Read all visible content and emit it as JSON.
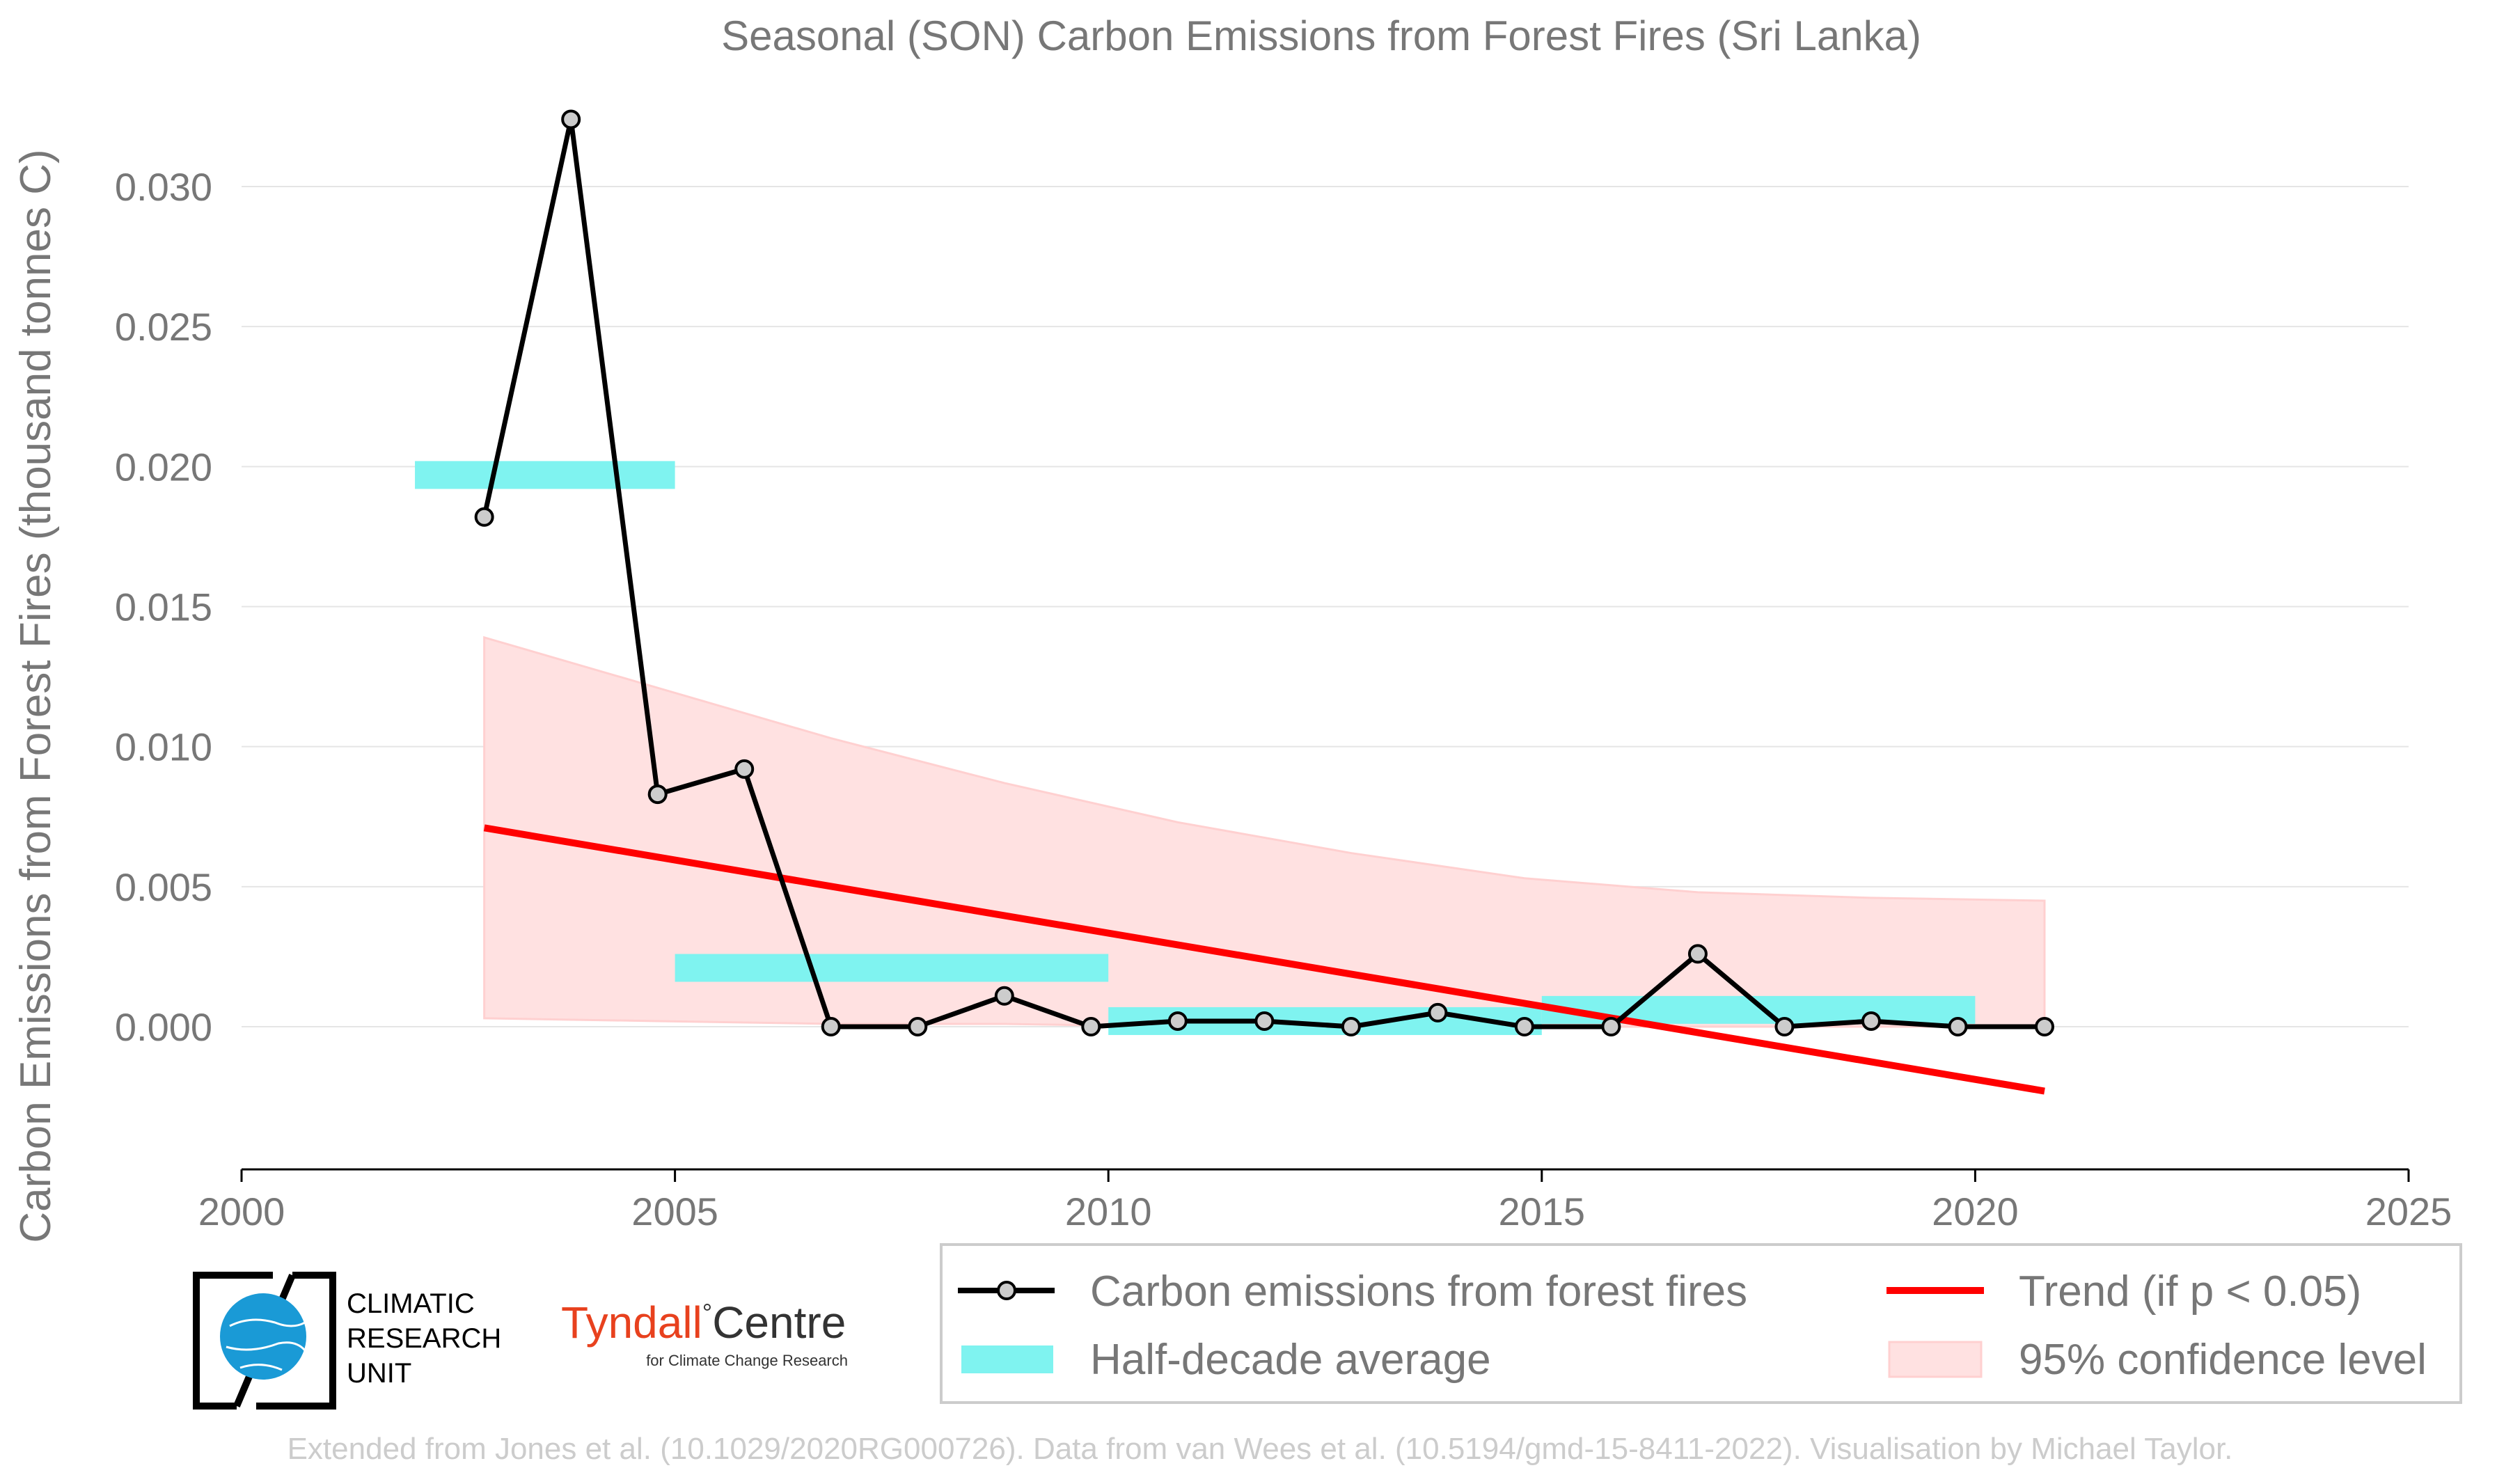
{
  "chart_data": {
    "type": "line",
    "title": "Seasonal (SON) Carbon Emissions from Forest Fires (Sri Lanka)",
    "xlabel": "",
    "ylabel": "Carbon Emissions from Forest Fires (thousand tonnes C)",
    "xlim": [
      2000,
      2025
    ],
    "ylim": [
      -0.005,
      0.0325
    ],
    "x_ticks": [
      "2000",
      "2005",
      "2010",
      "2015",
      "2020",
      "2025"
    ],
    "y_ticks": [
      "0.000",
      "0.005",
      "0.010",
      "0.015",
      "0.020",
      "0.025",
      "0.030"
    ],
    "grid": "horizontal",
    "legend_position": "bottom",
    "series": [
      {
        "name": "Carbon emissions from forest fires",
        "color": "#000000",
        "marker_color": "#cccccc",
        "x": [
          2002.8,
          2003.8,
          2004.8,
          2005.8,
          2006.8,
          2007.8,
          2008.8,
          2009.8,
          2010.8,
          2011.8,
          2012.8,
          2013.8,
          2014.8,
          2015.8,
          2016.8,
          2017.8,
          2018.8,
          2019.8,
          2020.8
        ],
        "values": [
          0.0182,
          0.0324,
          0.0083,
          0.0092,
          0.0,
          0.0,
          0.0011,
          0.0,
          0.0002,
          0.0002,
          0.0,
          0.0005,
          0.0,
          0.0,
          0.0026,
          0.0,
          0.0002,
          0.0,
          0.0
        ]
      }
    ],
    "half_decade_average": {
      "name": "Half-decade average",
      "color": "#7ff3f0",
      "bars": [
        {
          "x0": 2002.0,
          "x1": 2005.0,
          "value": 0.0197
        },
        {
          "x0": 2005.0,
          "x1": 2010.0,
          "value": 0.0021
        },
        {
          "x0": 2010.0,
          "x1": 2015.0,
          "value": 0.0002
        },
        {
          "x0": 2015.0,
          "x1": 2020.0,
          "value": 0.0006
        }
      ]
    },
    "trend": {
      "name": "Trend (if p < 0.05)",
      "color": "#ff0000",
      "x": [
        2002.8,
        2020.8
      ],
      "values": [
        0.0071,
        -0.0023
      ]
    },
    "confidence_band": {
      "name": "95% confidence level",
      "color": "#ffe1e1",
      "x": [
        2002.8,
        2004.8,
        2006.8,
        2008.8,
        2010.8,
        2012.8,
        2014.8,
        2016.8,
        2018.8,
        2020.8
      ],
      "upper": [
        0.0139,
        0.0121,
        0.0103,
        0.0087,
        0.0073,
        0.0062,
        0.0053,
        0.0048,
        0.0046,
        0.0045
      ],
      "lower": [
        0.0003,
        0.0002,
        0.0001,
        0.0001,
        0.0,
        0.0,
        0.0,
        0.0,
        0.0,
        0.0
      ]
    }
  },
  "logos": {
    "cru_lines": [
      "CLIMATIC",
      "RESEARCH",
      "UNIT"
    ],
    "tyndall_main": "Tyndall",
    "tyndall_degree": "°",
    "tyndall_centre": "Centre",
    "tyndall_sub": "for Climate Change Research"
  },
  "footer": "Extended from Jones et al. (10.1029/2020RG000726). Data from van Wees et al. (10.5194/gmd-15-8411-2022). Visualisation by Michael Taylor."
}
